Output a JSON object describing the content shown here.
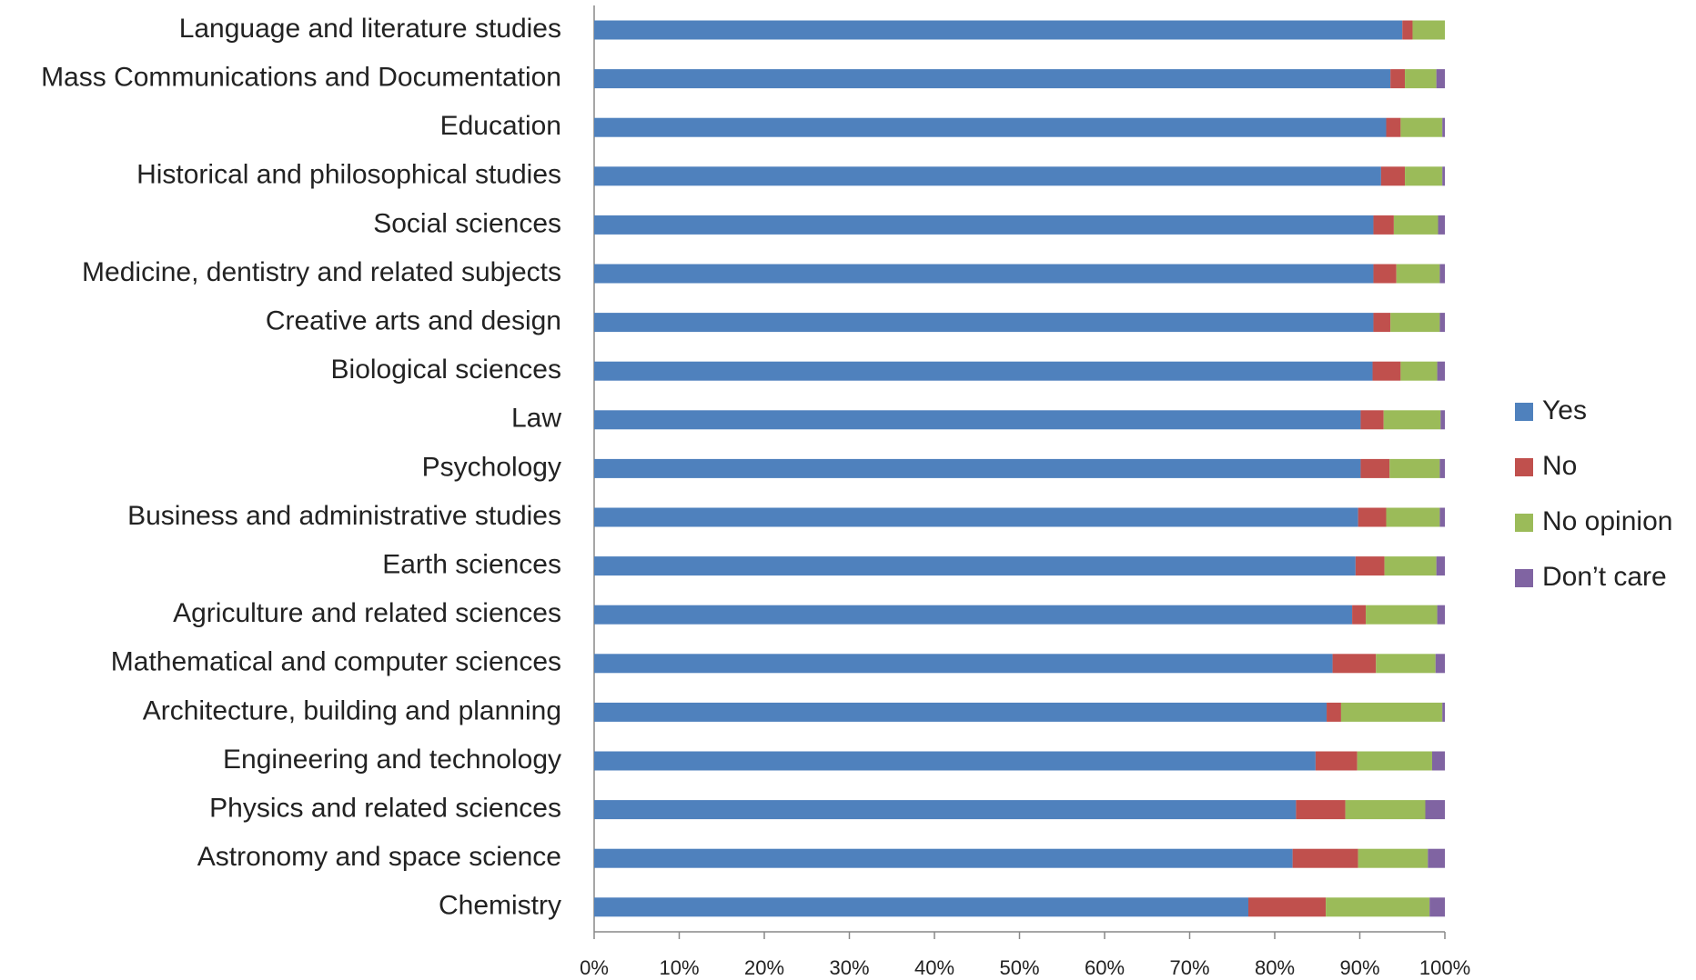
{
  "chart_data": {
    "type": "stacked_barh",
    "categories": [
      "Language and literature studies",
      "Mass Communications and Documentation",
      "Education",
      "Historical and philosophical studies",
      "Social sciences",
      "Medicine, dentistry and related subjects",
      "Creative arts and design",
      "Biological sciences",
      "Law",
      "Psychology",
      "Business and administrative studies",
      "Earth sciences",
      "Agriculture and related sciences",
      "Mathematical and computer sciences",
      "Architecture, building and planning",
      "Engineering and technology",
      "Physics and related sciences",
      "Astronomy and space science",
      "Chemistry"
    ],
    "series": [
      {
        "name": "Yes",
        "color": "#4f81bd",
        "values": [
          95.0,
          93.6,
          93.1,
          92.5,
          91.6,
          91.6,
          91.6,
          91.5,
          90.1,
          90.1,
          89.8,
          89.5,
          89.1,
          86.8,
          86.1,
          84.8,
          82.5,
          82.1,
          76.9
        ]
      },
      {
        "name": "No",
        "color": "#c0504d",
        "values": [
          1.2,
          1.7,
          1.7,
          2.8,
          2.4,
          2.7,
          2.0,
          3.3,
          2.7,
          3.4,
          3.3,
          3.4,
          1.6,
          5.1,
          1.7,
          4.9,
          5.8,
          7.7,
          9.1
        ]
      },
      {
        "name": "No opinion",
        "color": "#9bbb59",
        "values": [
          3.8,
          3.7,
          4.9,
          4.4,
          5.2,
          5.1,
          5.8,
          4.3,
          6.7,
          5.9,
          6.3,
          6.1,
          8.4,
          7.0,
          11.9,
          8.8,
          9.4,
          8.2,
          12.2
        ]
      },
      {
        "name": "Don’t care",
        "color": "#8064a2",
        "values": [
          0,
          1.0,
          0.3,
          0.3,
          0.8,
          0.6,
          0.6,
          0.9,
          0.5,
          0.6,
          0.6,
          1.0,
          0.9,
          1.1,
          0.3,
          1.5,
          2.3,
          2.0,
          1.8
        ]
      }
    ],
    "xlim": [
      0,
      100
    ],
    "xticks": [
      {
        "value": 0,
        "label": "0%"
      },
      {
        "value": 10,
        "label": "10%"
      },
      {
        "value": 20,
        "label": "20%"
      },
      {
        "value": 30,
        "label": "30%"
      },
      {
        "value": 40,
        "label": "40%"
      },
      {
        "value": 50,
        "label": "50%"
      },
      {
        "value": 60,
        "label": "60%"
      },
      {
        "value": 70,
        "label": "70%"
      },
      {
        "value": 80,
        "label": "80%"
      },
      {
        "value": 90,
        "label": "90%"
      },
      {
        "value": 100,
        "label": "100%"
      }
    ],
    "legend": "right",
    "grid": false
  }
}
